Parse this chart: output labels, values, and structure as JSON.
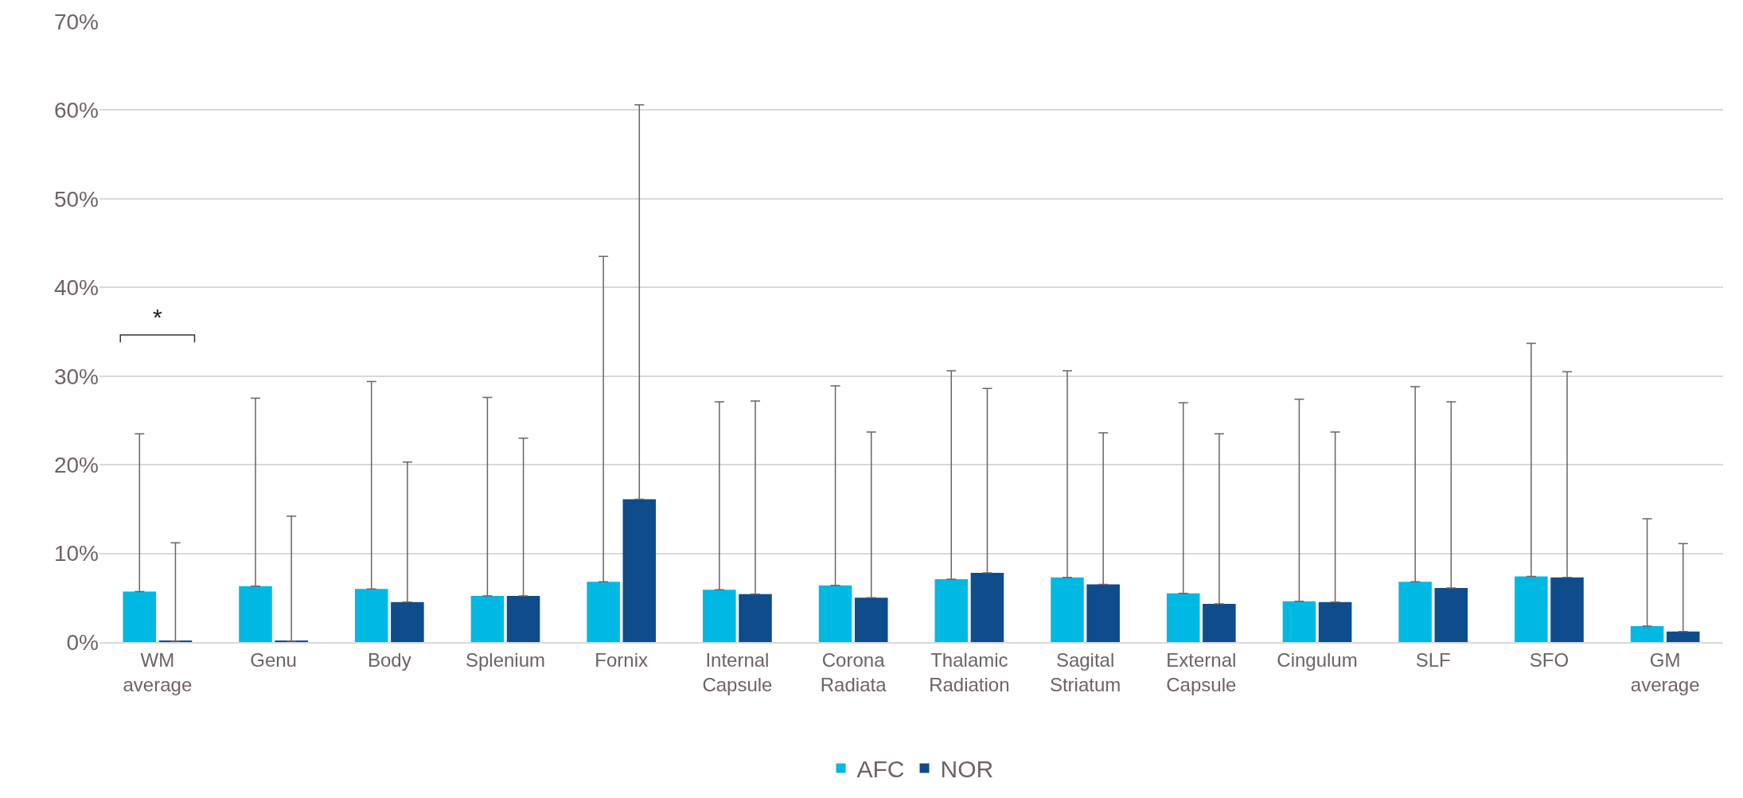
{
  "chart_data": {
    "type": "bar",
    "categories": [
      "WM average",
      "Genu",
      "Body",
      "Splenium",
      "Fornix",
      "Internal Capsule",
      "Corona Radiata",
      "Thalamic Radiation",
      "Sagital Striatum",
      "External Capsule",
      "Cingulum",
      "SLF",
      "SFO",
      "GM average"
    ],
    "series": [
      {
        "name": "AFC",
        "color": "#00b9e2",
        "values": [
          5.7,
          6.3,
          6.0,
          5.2,
          6.8,
          5.9,
          6.4,
          7.1,
          7.3,
          5.5,
          4.6,
          6.8,
          7.4,
          1.8
        ],
        "errors": [
          [
            5.7,
            23.5
          ],
          [
            6.3,
            27.5
          ],
          [
            6.0,
            29.4
          ],
          [
            5.2,
            27.6
          ],
          [
            6.8,
            43.5
          ],
          [
            5.9,
            27.1
          ],
          [
            6.4,
            28.9
          ],
          [
            7.1,
            30.6
          ],
          [
            7.3,
            30.6
          ],
          [
            5.5,
            27.0
          ],
          [
            4.6,
            27.4
          ],
          [
            6.8,
            28.8
          ],
          [
            7.4,
            33.7
          ],
          [
            1.8,
            13.9
          ]
        ]
      },
      {
        "name": "NOR",
        "color": "#0e4c8b",
        "values": [
          0.1,
          0.1,
          4.5,
          5.2,
          16.1,
          5.4,
          5.0,
          7.8,
          6.5,
          4.3,
          4.5,
          6.1,
          7.3,
          1.2
        ],
        "errors": [
          [
            0.1,
            11.2
          ],
          [
            0.1,
            14.2
          ],
          [
            4.5,
            20.3
          ],
          [
            5.2,
            23.0
          ],
          [
            16.1,
            60.6
          ],
          [
            5.4,
            27.2
          ],
          [
            5.0,
            23.7
          ],
          [
            7.8,
            28.6
          ],
          [
            6.5,
            23.6
          ],
          [
            4.3,
            23.5
          ],
          [
            4.5,
            23.7
          ],
          [
            6.1,
            27.1
          ],
          [
            7.3,
            30.5
          ],
          [
            1.2,
            11.1
          ]
        ]
      }
    ],
    "ylim": [
      0,
      70
    ],
    "yticks": [
      {
        "value": 0,
        "label": "0%"
      },
      {
        "value": 10,
        "label": "10%"
      },
      {
        "value": 20,
        "label": "20%"
      },
      {
        "value": 30,
        "label": "30%"
      },
      {
        "value": 40,
        "label": "40%"
      },
      {
        "value": 50,
        "label": "50%"
      },
      {
        "value": 60,
        "label": "60%"
      },
      {
        "value": 70,
        "label": "70%"
      }
    ],
    "grid": "y",
    "legend": "bottom",
    "annotations": [
      "*"
    ]
  }
}
